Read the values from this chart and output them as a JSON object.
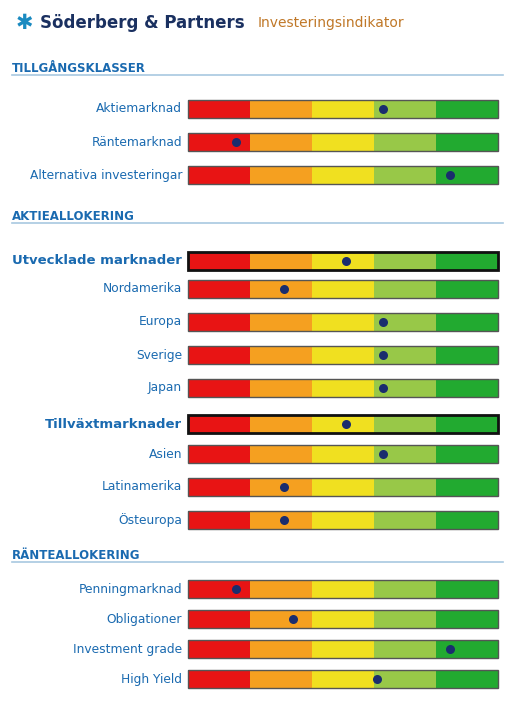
{
  "title_main": "Söderberg & Partners",
  "title_sub": "Investeringsindikator",
  "sections": [
    {
      "header": "TILLGÅNGSKLASSER",
      "rows": [
        {
          "label": "Aktiemarknad",
          "dot": 3.65,
          "bold": false,
          "indent": false
        },
        {
          "label": "Räntemarknad",
          "dot": 1.28,
          "bold": false,
          "indent": false
        },
        {
          "label": "Alternativa investeringar",
          "dot": 4.72,
          "bold": false,
          "indent": false
        }
      ]
    },
    {
      "header": "AKTIEALLOKERING",
      "rows": [
        {
          "label": "Utvecklade marknader",
          "dot": 3.05,
          "bold": true,
          "indent": false
        },
        {
          "label": "Nordamerika",
          "dot": 2.05,
          "bold": false,
          "indent": true
        },
        {
          "label": "Europa",
          "dot": 3.65,
          "bold": false,
          "indent": true
        },
        {
          "label": "Sverige",
          "dot": 3.65,
          "bold": false,
          "indent": true
        },
        {
          "label": "Japan",
          "dot": 3.65,
          "bold": false,
          "indent": true
        },
        {
          "label": "Tillväxtmarknader",
          "dot": 3.05,
          "bold": true,
          "indent": false
        },
        {
          "label": "Asien",
          "dot": 3.65,
          "bold": false,
          "indent": true
        },
        {
          "label": "Latinamerika",
          "dot": 2.05,
          "bold": false,
          "indent": true
        },
        {
          "label": "Östeuropa",
          "dot": 2.05,
          "bold": false,
          "indent": true
        }
      ]
    },
    {
      "header": "RÄNTEALLOKERING",
      "rows": [
        {
          "label": "Penningmarknad",
          "dot": 1.28,
          "bold": false,
          "indent": false
        },
        {
          "label": "Obligationer",
          "dot": 2.2,
          "bold": false,
          "indent": false
        },
        {
          "label": "Investment grade",
          "dot": 4.72,
          "bold": false,
          "indent": false
        },
        {
          "label": "High Yield",
          "dot": 3.55,
          "bold": false,
          "indent": false
        }
      ]
    }
  ],
  "bar_colors": [
    "#e81414",
    "#f5a020",
    "#f0e020",
    "#98c848",
    "#22aa30"
  ],
  "dot_color": "#1a2d6e",
  "header_color": "#1a6ab0",
  "label_color": "#1a6ab0",
  "line_color": "#a8c8e0",
  "title_color": "#1a3060",
  "subtitle_color": "#c07828",
  "logo_color": "#1a8ac0",
  "bg_color": "#ffffff"
}
